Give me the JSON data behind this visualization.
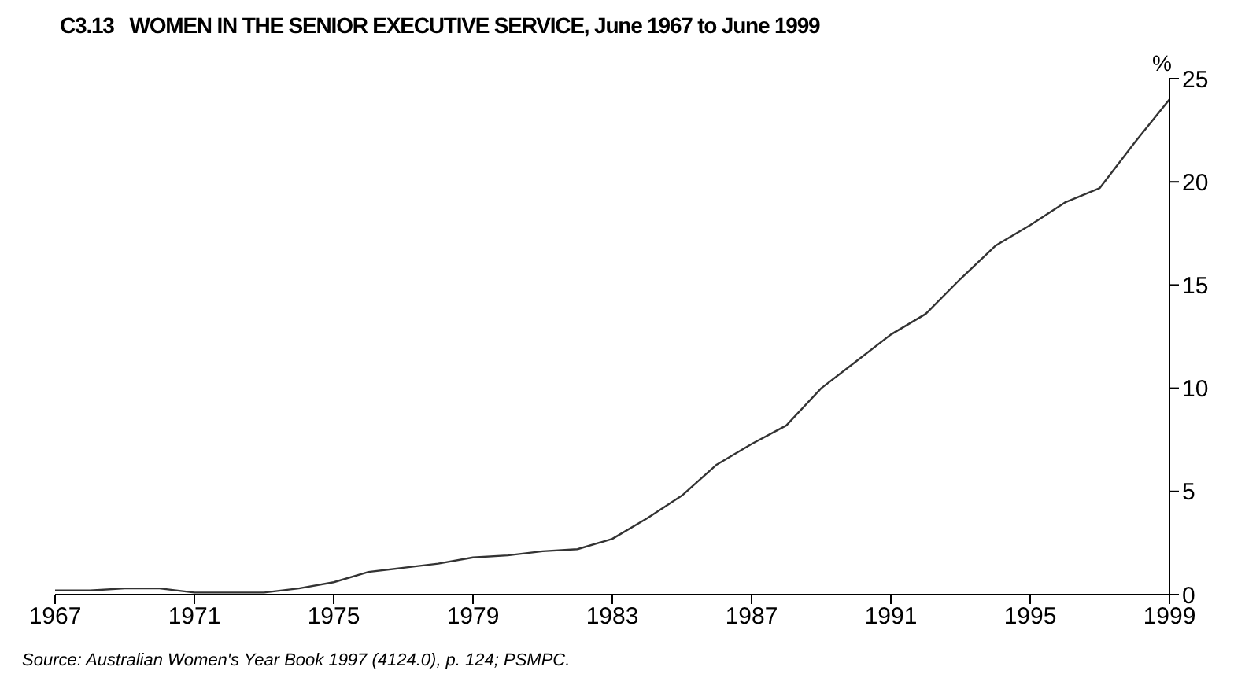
{
  "chart_data": {
    "type": "line",
    "title": "C3.13   WOMEN IN THE SENIOR EXECUTIVE SERVICE, June 1967 to June 1999",
    "ylabel": "%",
    "annotations": [
      "Source: Australian Women's Year Book 1997 (4124.0), p. 124; PSMPC."
    ],
    "x": [
      1967,
      1968,
      1969,
      1970,
      1971,
      1972,
      1973,
      1974,
      1975,
      1976,
      1977,
      1978,
      1979,
      1980,
      1981,
      1982,
      1983,
      1984,
      1985,
      1986,
      1987,
      1988,
      1989,
      1990,
      1991,
      1992,
      1993,
      1994,
      1995,
      1996,
      1997,
      1998,
      1999
    ],
    "series": [
      {
        "color": "#333333",
        "values": [
          0.2,
          0.2,
          0.3,
          0.3,
          0.1,
          0.1,
          0.1,
          0.3,
          0.6,
          1.1,
          1.3,
          1.5,
          1.8,
          1.9,
          2.1,
          2.2,
          2.7,
          3.7,
          4.8,
          6.3,
          7.3,
          8.2,
          10.0,
          11.3,
          12.6,
          13.6,
          15.3,
          16.9,
          17.9,
          19.0,
          19.7,
          21.9,
          24.0
        ]
      }
    ],
    "xlim": [
      1967,
      1999
    ],
    "xticks": [
      1967,
      1971,
      1975,
      1979,
      1983,
      1987,
      1991,
      1995,
      1999
    ],
    "ylim": [
      0,
      25
    ],
    "yticks": [
      0,
      5,
      10,
      15,
      20,
      25
    ],
    "grid": false,
    "legend": false,
    "marker": "none",
    "line_style": "solid"
  }
}
